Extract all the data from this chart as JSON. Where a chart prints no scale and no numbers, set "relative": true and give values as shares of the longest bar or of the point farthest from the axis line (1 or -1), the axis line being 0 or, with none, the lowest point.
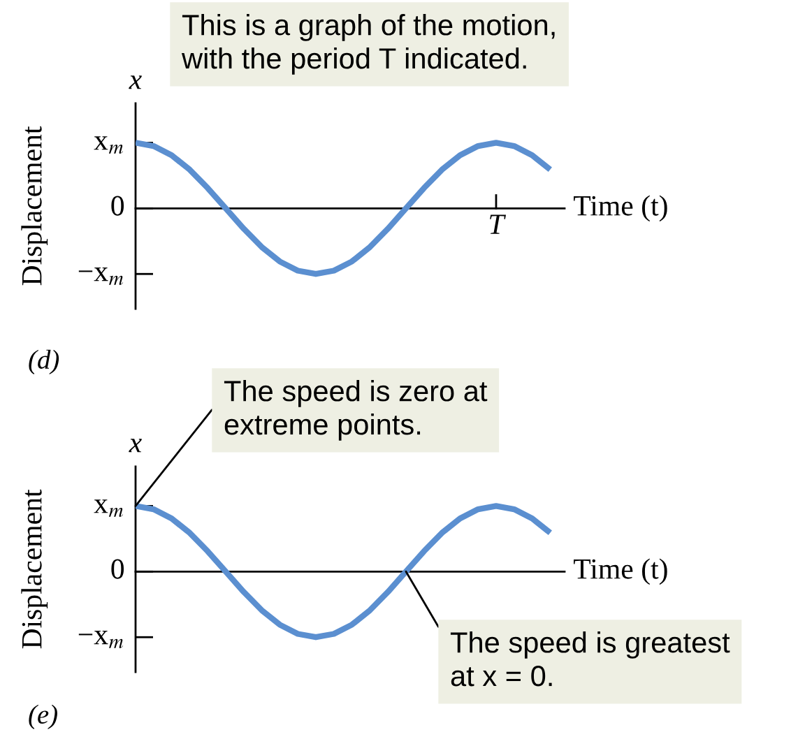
{
  "chart_data": [
    {
      "type": "line",
      "title": "(d)",
      "ylabel": "Displacement",
      "xlabel": "Time (t)",
      "relative": true,
      "annotations": [
        "x",
        "x$_{m}$",
        "0",
        "−x$_{m}$",
        "T",
        "This is a graph of the motion,\nwith the period T indicated."
      ],
      "categories": [
        null,
        null,
        null,
        null,
        null,
        null,
        null,
        null,
        null,
        null,
        null,
        null,
        null,
        null,
        null,
        null,
        null,
        null,
        null,
        null,
        null,
        null,
        null,
        null
      ],
      "series": [
        {
          "color": "#5b8fd0",
          "values": [
            1,
            0.95,
            0.81,
            0.59,
            0.31,
            0,
            -0.31,
            -0.59,
            -0.81,
            -0.95,
            -1,
            -0.95,
            -0.81,
            -0.59,
            -0.31,
            0,
            0.31,
            0.59,
            0.81,
            0.95,
            1,
            0.95,
            0.81,
            0.59
          ]
        }
      ],
      "grid": false,
      "legend": false
    },
    {
      "type": "line",
      "title": "(e)",
      "ylabel": "Displacement",
      "xlabel": "Time (t)",
      "relative": true,
      "annotations": [
        "x",
        "x$_{m}$",
        "0",
        "−x$_{m}$",
        "The speed is zero at\nextreme points.",
        "The speed is greatest\nat x = 0."
      ],
      "categories": [
        null,
        null,
        null,
        null,
        null,
        null,
        null,
        null,
        null,
        null,
        null,
        null,
        null,
        null,
        null,
        null,
        null,
        null,
        null,
        null,
        null,
        null,
        null,
        null
      ],
      "series": [
        {
          "color": "#5b8fd0",
          "values": [
            1,
            0.95,
            0.81,
            0.59,
            0.31,
            0,
            -0.31,
            -0.59,
            -0.81,
            -0.95,
            -1,
            -0.95,
            -0.81,
            -0.59,
            -0.31,
            0,
            0.31,
            0.59,
            0.81,
            0.95,
            1,
            0.95,
            0.81,
            0.59
          ]
        }
      ],
      "grid": false,
      "legend": false
    }
  ]
}
